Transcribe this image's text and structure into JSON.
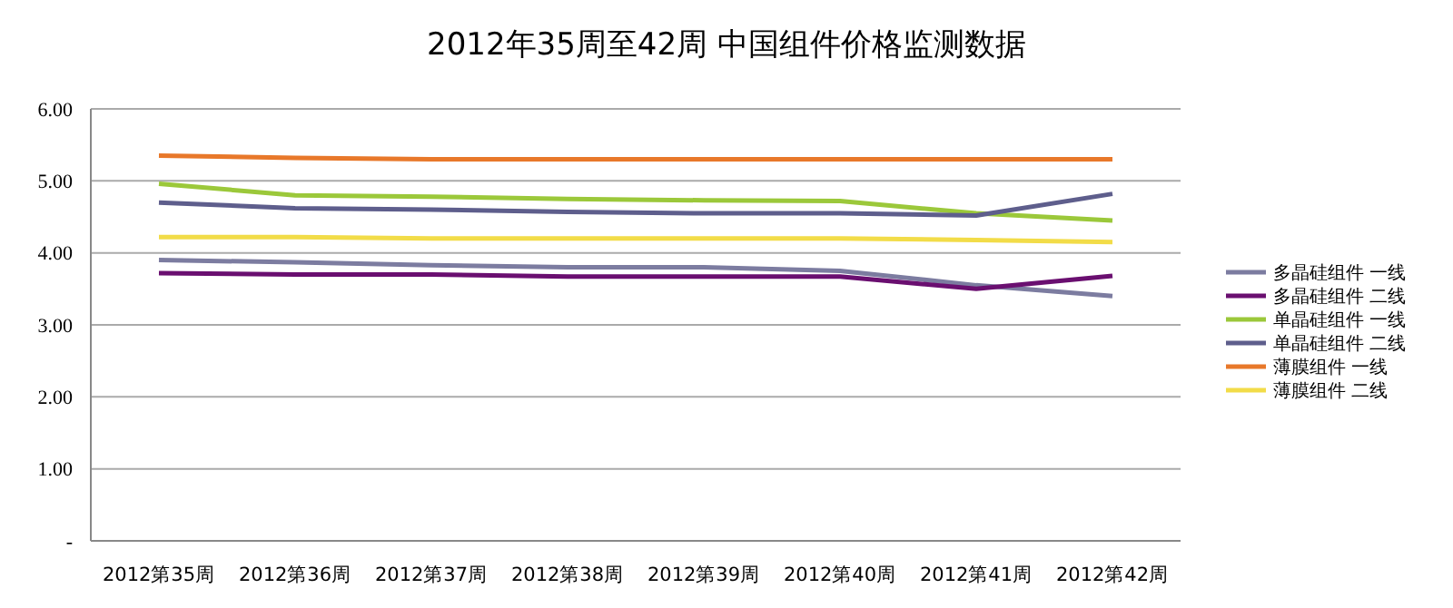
{
  "chart_data": {
    "type": "line",
    "title": "2012年35周至42周  中国组件价格监测数据",
    "categories": [
      "2012第35周",
      "2012第36周",
      "2012第37周",
      "2012第38周",
      "2012第39周",
      "2012第40周",
      "2012第41周",
      "2012第42周"
    ],
    "series": [
      {
        "name": "多晶硅组件  一线",
        "color": "#7c7ca0",
        "values": [
          3.9,
          3.87,
          3.83,
          3.8,
          3.8,
          3.75,
          3.55,
          3.4
        ]
      },
      {
        "name": "多晶硅组件  二线",
        "color": "#6a0f70",
        "values": [
          3.72,
          3.7,
          3.7,
          3.67,
          3.67,
          3.67,
          3.5,
          3.68
        ]
      },
      {
        "name": "单晶硅组件  一线",
        "color": "#9bc83a",
        "values": [
          4.96,
          4.8,
          4.78,
          4.75,
          4.73,
          4.72,
          4.55,
          4.45
        ]
      },
      {
        "name": "单晶硅组件  二线",
        "color": "#5e5e8c",
        "values": [
          4.7,
          4.62,
          4.6,
          4.57,
          4.55,
          4.55,
          4.52,
          4.82
        ]
      },
      {
        "name": "薄膜组件  一线",
        "color": "#e8782a",
        "values": [
          5.35,
          5.32,
          5.3,
          5.3,
          5.3,
          5.3,
          5.3,
          5.3
        ]
      },
      {
        "name": "薄膜组件  二线",
        "color": "#f2dc48",
        "values": [
          4.22,
          4.22,
          4.2,
          4.2,
          4.2,
          4.2,
          4.18,
          4.15
        ]
      }
    ],
    "ylim": [
      0,
      6
    ],
    "yticks": [
      {
        "value": 0,
        "label": "-"
      },
      {
        "value": 1,
        "label": "1.00"
      },
      {
        "value": 2,
        "label": "2.00"
      },
      {
        "value": 3,
        "label": "3.00"
      },
      {
        "value": 4,
        "label": "4.00"
      },
      {
        "value": 5,
        "label": "5.00"
      },
      {
        "value": 6,
        "label": "6.00"
      }
    ],
    "grid": "y",
    "legend": "right",
    "marker": "none",
    "line_style": "solid"
  }
}
